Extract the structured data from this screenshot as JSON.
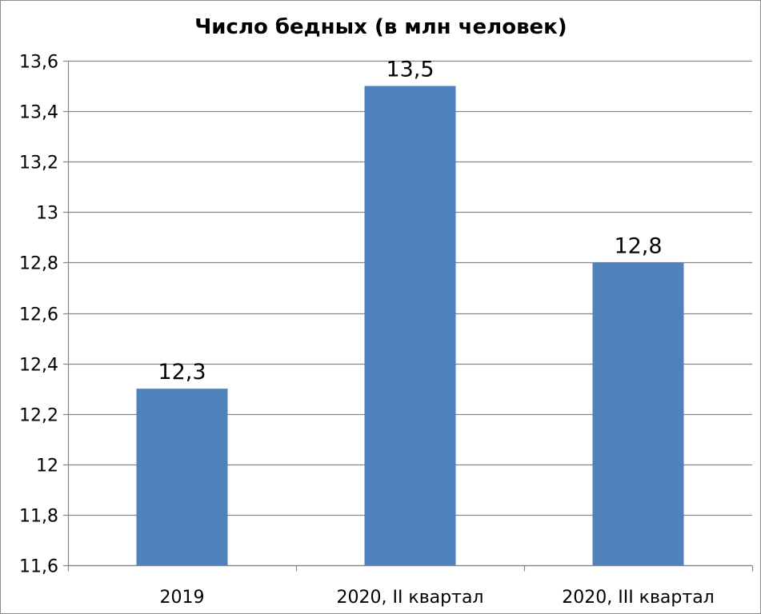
{
  "chart_data": {
    "type": "bar",
    "title": "Число бедных (в млн человек)",
    "xlabel": "",
    "ylabel": "",
    "categories": [
      "2019",
      "2020, II квартал",
      "2020, III квартал"
    ],
    "values": [
      12.3,
      13.5,
      12.8
    ],
    "data_labels": [
      "12,3",
      "13,5",
      "12,8"
    ],
    "ylim": [
      11.6,
      13.6
    ],
    "yticks": [
      11.6,
      11.8,
      12,
      12.2,
      12.4,
      12.6,
      12.8,
      13,
      13.2,
      13.4,
      13.6
    ],
    "ytick_labels": [
      "11,6",
      "11,8",
      "12",
      "12,2",
      "12,4",
      "12,6",
      "12,8",
      "13",
      "13,2",
      "13,4",
      "13,6"
    ],
    "grid": true,
    "legend": "none",
    "bar_color": "#4f81bd",
    "grid_color": "#868686"
  }
}
